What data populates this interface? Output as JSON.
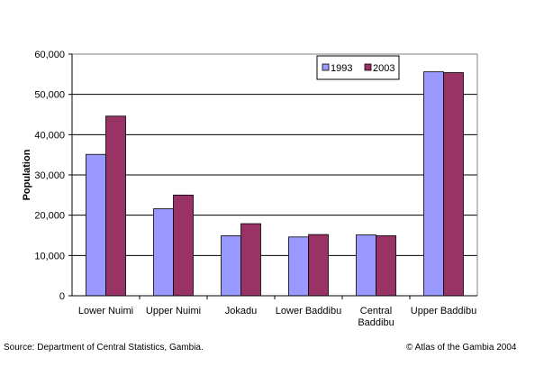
{
  "chart_data": {
    "type": "bar",
    "title": "",
    "xlabel": "",
    "ylabel": "Population",
    "ylim": [
      0,
      60000
    ],
    "yticks": [
      "0",
      "10,000",
      "20,000",
      "30,000",
      "40,000",
      "50,000",
      "60,000"
    ],
    "categories": [
      [
        "Lower Nuimi"
      ],
      [
        "Upper Nuimi"
      ],
      [
        "Jokadu"
      ],
      [
        "Lower Baddibu"
      ],
      [
        "Central",
        "Baddibu"
      ],
      [
        "Upper Baddibu"
      ]
    ],
    "series": [
      {
        "name": "1993",
        "color": "#9999ff",
        "values": [
          35100,
          21600,
          14900,
          14600,
          15100,
          55600
        ]
      },
      {
        "name": "2003",
        "color": "#993366",
        "values": [
          44600,
          25000,
          17900,
          15200,
          14900,
          55400
        ]
      }
    ],
    "grid": true,
    "legend_position": "top-right"
  },
  "footer": {
    "source": "Source: Department of Central Statistics, Gambia.",
    "credit": "© Atlas of the Gambia 2004"
  }
}
